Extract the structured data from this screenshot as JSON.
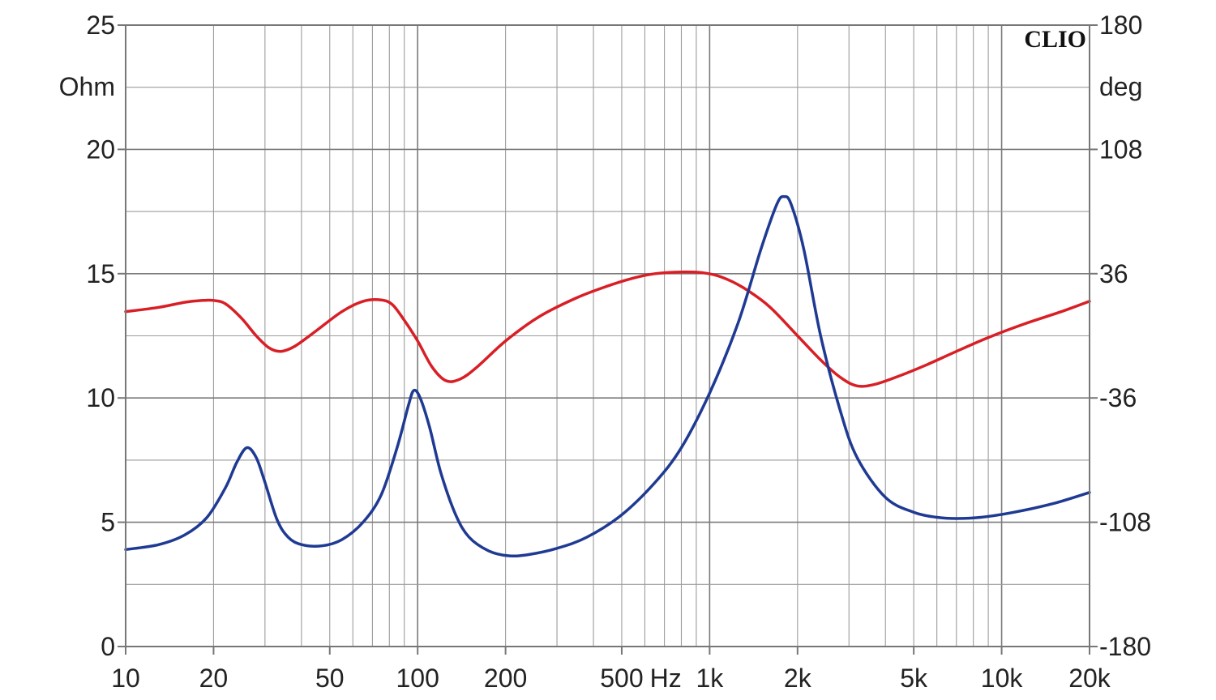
{
  "chart_data": {
    "type": "line",
    "brand": "CLIO",
    "x_axis": {
      "scale": "log",
      "range_hz": [
        10,
        20000
      ],
      "tick_values": [
        10,
        20,
        50,
        100,
        200,
        500,
        1000,
        2000,
        5000,
        10000,
        20000
      ],
      "tick_labels": [
        "10",
        "20",
        "50",
        "100",
        "200",
        "500",
        "1k",
        "2k",
        "5k",
        "10k",
        "20k"
      ],
      "unit_label": "Hz"
    },
    "y_left": {
      "unit_label": "Ohm",
      "range": [
        0,
        25
      ],
      "tick_values": [
        0,
        5,
        10,
        15,
        20,
        25
      ],
      "tick_labels": [
        "0",
        "5",
        "10",
        "15",
        "20",
        "25"
      ]
    },
    "y_right": {
      "unit_label": "deg",
      "range": [
        -180,
        180
      ],
      "tick_values": [
        -180,
        -108,
        -36,
        36,
        108,
        180
      ],
      "tick_labels": [
        "-180",
        "-108",
        "-36",
        "36",
        "108",
        "180"
      ]
    },
    "grid": true,
    "series": [
      {
        "id": "impedance",
        "axis": "left",
        "color": "#1f3a93",
        "points": [
          [
            10,
            3.9
          ],
          [
            13,
            4.1
          ],
          [
            16,
            4.5
          ],
          [
            19,
            5.2
          ],
          [
            22,
            6.4
          ],
          [
            24,
            7.4
          ],
          [
            26,
            8.0
          ],
          [
            28,
            7.6
          ],
          [
            30,
            6.6
          ],
          [
            33,
            5.1
          ],
          [
            36,
            4.4
          ],
          [
            40,
            4.1
          ],
          [
            47,
            4.05
          ],
          [
            55,
            4.3
          ],
          [
            65,
            5.0
          ],
          [
            75,
            6.1
          ],
          [
            85,
            8.0
          ],
          [
            93,
            9.7
          ],
          [
            97,
            10.3
          ],
          [
            102,
            10.0
          ],
          [
            110,
            8.8
          ],
          [
            120,
            7.0
          ],
          [
            135,
            5.3
          ],
          [
            150,
            4.4
          ],
          [
            175,
            3.85
          ],
          [
            205,
            3.65
          ],
          [
            240,
            3.7
          ],
          [
            300,
            3.95
          ],
          [
            380,
            4.4
          ],
          [
            500,
            5.3
          ],
          [
            650,
            6.6
          ],
          [
            800,
            8.0
          ],
          [
            1000,
            10.2
          ],
          [
            1250,
            13.0
          ],
          [
            1500,
            16.0
          ],
          [
            1700,
            17.8
          ],
          [
            1800,
            18.1
          ],
          [
            1900,
            17.8
          ],
          [
            2100,
            16.0
          ],
          [
            2400,
            12.5
          ],
          [
            2800,
            9.5
          ],
          [
            3200,
            7.6
          ],
          [
            4000,
            6.0
          ],
          [
            5000,
            5.4
          ],
          [
            6000,
            5.2
          ],
          [
            7000,
            5.15
          ],
          [
            8500,
            5.2
          ],
          [
            11000,
            5.4
          ],
          [
            15000,
            5.75
          ],
          [
            20000,
            6.2
          ]
        ]
      },
      {
        "id": "phase",
        "axis": "right",
        "color": "#d81f26",
        "points": [
          [
            10,
            14.0
          ],
          [
            13,
            16.5
          ],
          [
            16,
            19.5
          ],
          [
            18,
            20.4
          ],
          [
            20,
            20.5
          ],
          [
            22,
            18.5
          ],
          [
            25,
            10
          ],
          [
            28,
            0
          ],
          [
            31,
            -7
          ],
          [
            34,
            -9
          ],
          [
            38,
            -6
          ],
          [
            45,
            3
          ],
          [
            55,
            14
          ],
          [
            65,
            20
          ],
          [
            75,
            20.8
          ],
          [
            82,
            18
          ],
          [
            90,
            9
          ],
          [
            100,
            -3
          ],
          [
            112,
            -18
          ],
          [
            125,
            -26
          ],
          [
            140,
            -25
          ],
          [
            160,
            -18
          ],
          [
            200,
            -3
          ],
          [
            260,
            11
          ],
          [
            350,
            22
          ],
          [
            450,
            29
          ],
          [
            550,
            33.5
          ],
          [
            650,
            36
          ],
          [
            800,
            37
          ],
          [
            950,
            36.5
          ],
          [
            1100,
            34
          ],
          [
            1300,
            28
          ],
          [
            1600,
            17
          ],
          [
            2000,
            0
          ],
          [
            2400,
            -14
          ],
          [
            2800,
            -24
          ],
          [
            3200,
            -29
          ],
          [
            3700,
            -28
          ],
          [
            4500,
            -23
          ],
          [
            5500,
            -17
          ],
          [
            7000,
            -9
          ],
          [
            9000,
            -1
          ],
          [
            12000,
            7
          ],
          [
            16000,
            14
          ],
          [
            20000,
            20
          ]
        ]
      }
    ]
  }
}
